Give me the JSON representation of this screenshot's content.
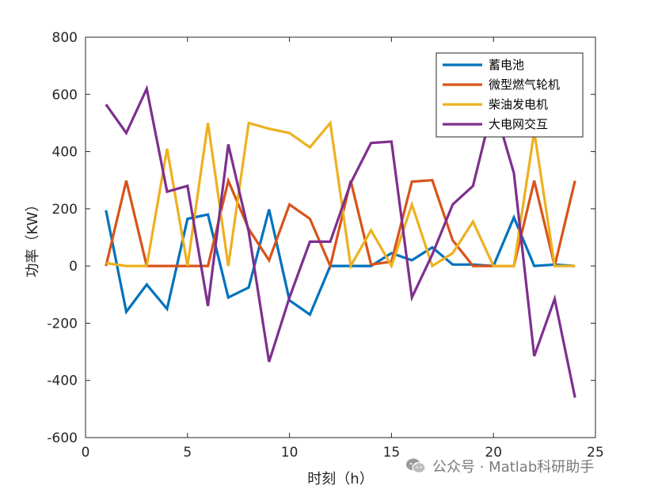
{
  "chart_data": {
    "type": "line",
    "title": "",
    "xlabel": "时刻（h）",
    "ylabel": "功率（KW）",
    "xlim": [
      0,
      25
    ],
    "ylim": [
      -600,
      800
    ],
    "xticks": [
      0,
      5,
      10,
      15,
      20,
      25
    ],
    "yticks": [
      -600,
      -400,
      -200,
      0,
      200,
      400,
      600,
      800
    ],
    "grid": false,
    "legend_position": "top-right",
    "x": [
      1,
      2,
      3,
      4,
      5,
      6,
      7,
      8,
      9,
      10,
      11,
      12,
      13,
      14,
      15,
      16,
      17,
      18,
      19,
      20,
      21,
      22,
      23,
      24
    ],
    "series": [
      {
        "name": "蓄电池",
        "color": "#0072BD",
        "values": [
          195,
          -160,
          -65,
          -150,
          165,
          180,
          -110,
          -75,
          198,
          -120,
          -170,
          0,
          0,
          0,
          45,
          20,
          65,
          5,
          5,
          0,
          170,
          0,
          5,
          0
        ]
      },
      {
        "name": "微型燃气轮机",
        "color": "#D95319",
        "values": [
          0,
          298,
          0,
          0,
          0,
          0,
          298,
          130,
          20,
          215,
          165,
          0,
          298,
          5,
          15,
          295,
          300,
          90,
          0,
          0,
          0,
          298,
          0,
          298
        ]
      },
      {
        "name": "柴油发电机",
        "color": "#EDB120",
        "values": [
          10,
          0,
          0,
          410,
          0,
          500,
          0,
          500,
          480,
          465,
          415,
          500,
          0,
          125,
          0,
          215,
          0,
          45,
          155,
          0,
          0,
          470,
          0,
          0
        ]
      },
      {
        "name": "大电网交互",
        "color": "#7E2F8E",
        "values": [
          565,
          465,
          620,
          260,
          280,
          -140,
          425,
          120,
          -335,
          -110,
          85,
          85,
          290,
          430,
          435,
          -110,
          40,
          215,
          280,
          570,
          325,
          -315,
          -115,
          -460
        ]
      }
    ]
  },
  "watermark": {
    "text": "公众号 · Matlab科研助手",
    "icon": "wechat-icon"
  }
}
